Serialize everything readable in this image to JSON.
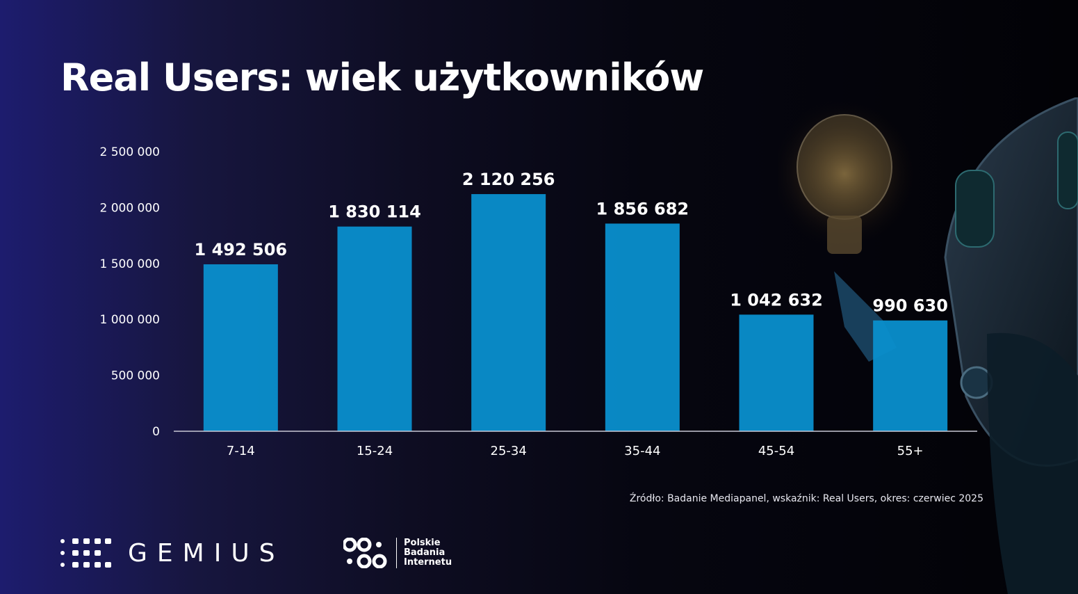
{
  "title": "Real Users: wiek użytkowników",
  "source": "Źródło: Badanie Mediapanel, wskaźnik: Real Users, okres: czerwiec 2025",
  "logos": {
    "gemius": "GEMIUS",
    "pbi_lines": [
      "Polskie",
      "Badania",
      "Internetu"
    ]
  },
  "colors": {
    "bar": "#0a8fce",
    "axis": "#c9c9d6",
    "label": "#ffffff"
  },
  "chart_data": {
    "type": "bar",
    "categories": [
      "7-14",
      "15-24",
      "25-34",
      "35-44",
      "45-54",
      "55+"
    ],
    "values": [
      1492506,
      1830114,
      2120256,
      1856682,
      1042632,
      990630
    ],
    "value_labels": [
      "1 492 506",
      "1 830 114",
      "2 120 256",
      "1 856 682",
      "1 042 632",
      "990 630"
    ],
    "ylim": [
      0,
      2500000
    ],
    "yticks": [
      0,
      500000,
      1000000,
      1500000,
      2000000,
      2500000
    ],
    "ytick_labels": [
      "0",
      "500 000",
      "1 000 000",
      "1 500 000",
      "2 000 000",
      "2 500 000"
    ],
    "grid": false,
    "legend": "none"
  }
}
